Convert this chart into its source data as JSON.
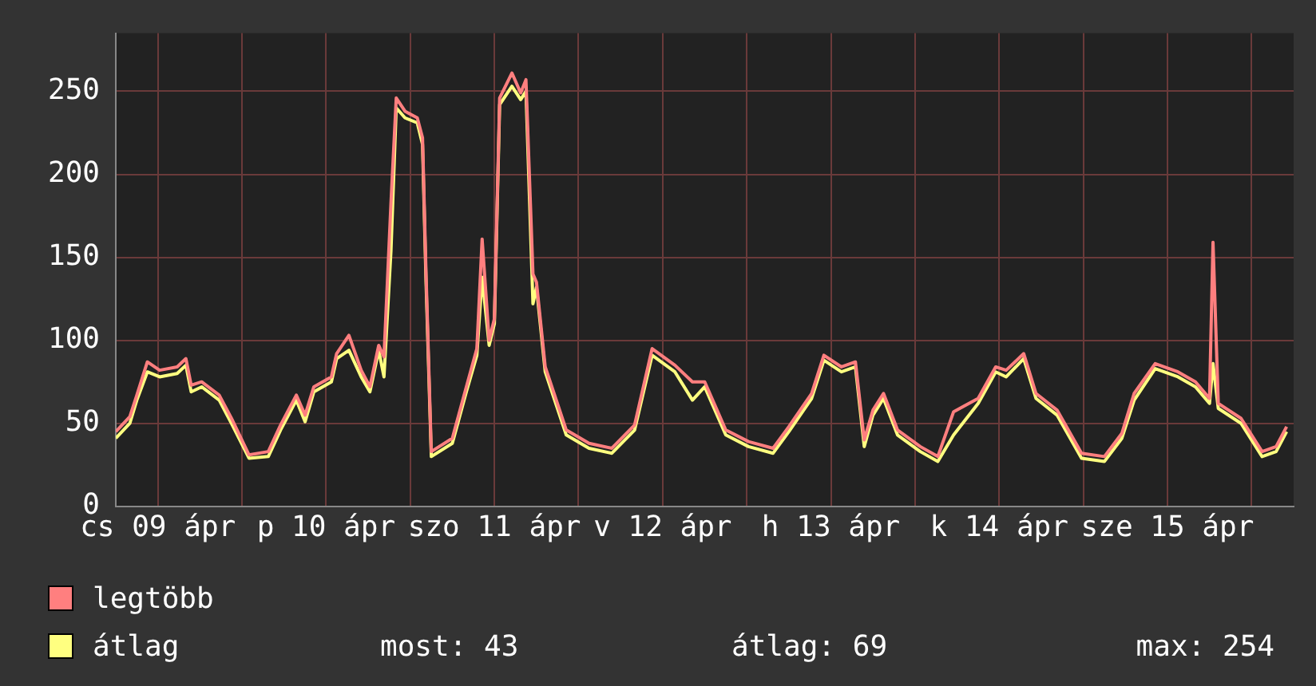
{
  "chart_data": {
    "type": "line",
    "x": [
      "--04-09T06:00",
      "--04-09T08:00",
      "--04-09T09:00",
      "--04-09T10:30",
      "--04-09T12:15",
      "--04-09T14:45",
      "--04-09T16:00",
      "--04-09T16:45",
      "--04-09T18:15",
      "--04-09T20:45",
      "--04-09T22:30",
      "--04-10T01:00",
      "--04-10T03:45",
      "--04-10T05:30",
      "--04-10T07:45",
      "--04-10T09:00",
      "--04-10T10:15",
      "--04-10T12:45",
      "--04-10T13:30",
      "--04-10T15:15",
      "--04-10T17:00",
      "--04-10T18:15",
      "--04-10T19:30",
      "--04-10T20:15",
      "--04-10T21:15",
      "--04-10T22:00",
      "--04-10T23:15",
      "--04-11T01:00",
      "--04-11T01:45",
      "--04-11T02:15",
      "--04-11T03:00",
      "--04-11T06:00",
      "--04-11T08:00",
      "--04-11T09:30",
      "--04-11T10:15",
      "--04-11T11:15",
      "--04-11T12:00",
      "--04-11T12:45",
      "--04-11T14:30",
      "--04-11T15:45",
      "--04-11T16:30",
      "--04-11T17:30",
      "--04-11T18:00",
      "--04-11T19:15",
      "--04-11T22:15",
      "--04-12T01:30",
      "--04-12T04:45",
      "--04-12T08:00",
      "--04-12T10:30",
      "--04-12T13:45",
      "--04-12T16:15",
      "--04-12T18:00",
      "--04-12T21:00",
      "--04-13T00:15",
      "--04-13T03:45",
      "--04-13T06:00",
      "--04-13T09:15",
      "--04-13T11:00",
      "--04-13T13:30",
      "--04-13T15:30",
      "--04-13T16:45",
      "--04-13T18:00",
      "--04-13T19:30",
      "--04-13T21:30",
      "--04-14T00:45",
      "--04-14T03:15",
      "--04-14T05:30",
      "--04-14T09:00",
      "--04-14T11:30",
      "--04-14T13:00",
      "--04-14T15:30",
      "--04-14T17:15",
      "--04-14T20:15",
      "--04-14T23:45",
      "--04-15T03:00",
      "--04-15T05:30",
      "--04-15T07:15",
      "--04-15T10:15",
      "--04-15T13:30",
      "--04-15T16:00",
      "--04-15T18:00",
      "--04-15T18:30",
      "--04-15T19:15",
      "--04-15T22:30",
      "--04-16T01:30",
      "--04-16T03:30",
      "--04-16T05:00"
    ],
    "series": [
      {
        "name": "legtöbb",
        "color": "#ff7f7f",
        "values": [
          45,
          54,
          67,
          87,
          82,
          84,
          89,
          73,
          75,
          67,
          53,
          31,
          33,
          49,
          67,
          55,
          72,
          78,
          92,
          103,
          82,
          72,
          97,
          90,
          183,
          246,
          238,
          234,
          222,
          140,
          33,
          41,
          72,
          95,
          161,
          100,
          113,
          246,
          261,
          249,
          257,
          140,
          135,
          84,
          46,
          38,
          35,
          49,
          95,
          85,
          75,
          75,
          46,
          39,
          35,
          48,
          68,
          91,
          84,
          87,
          40,
          58,
          68,
          46,
          36,
          30,
          57,
          65,
          84,
          82,
          92,
          68,
          58,
          32,
          30,
          44,
          68,
          86,
          81,
          75,
          65,
          159,
          62,
          53,
          33,
          36,
          48
        ]
      },
      {
        "name": "átlag",
        "color": "#ffff80",
        "values": [
          41,
          50,
          64,
          81,
          78,
          80,
          85,
          69,
          72,
          64,
          50,
          29,
          30,
          46,
          64,
          51,
          69,
          75,
          89,
          94,
          78,
          69,
          94,
          78,
          154,
          240,
          234,
          231,
          218,
          135,
          30,
          38,
          69,
          91,
          138,
          97,
          110,
          242,
          253,
          245,
          250,
          122,
          132,
          81,
          43,
          35,
          32,
          46,
          91,
          81,
          64,
          72,
          43,
          36,
          32,
          45,
          65,
          88,
          81,
          84,
          36,
          55,
          65,
          43,
          33,
          27,
          43,
          62,
          81,
          78,
          89,
          65,
          55,
          29,
          27,
          41,
          64,
          83,
          78,
          72,
          62,
          86,
          59,
          50,
          30,
          33,
          45
        ]
      }
    ],
    "xlim": [
      "--04-09T06:00",
      "--04-16T06:00"
    ],
    "xticks": [
      {
        "value": "--04-09T12:00",
        "label": "cs 09 ápr"
      },
      {
        "value": "--04-10T00:00",
        "label": null
      },
      {
        "value": "--04-10T12:00",
        "label": "p 10 ápr"
      },
      {
        "value": "--04-11T00:00",
        "label": null
      },
      {
        "value": "--04-11T12:00",
        "label": "szo 11 ápr"
      },
      {
        "value": "--04-12T00:00",
        "label": null
      },
      {
        "value": "--04-12T12:00",
        "label": "v 12 ápr"
      },
      {
        "value": "--04-13T00:00",
        "label": null
      },
      {
        "value": "--04-13T12:00",
        "label": "h 13 ápr"
      },
      {
        "value": "--04-14T00:00",
        "label": null
      },
      {
        "value": "--04-14T12:00",
        "label": "k 14 ápr"
      },
      {
        "value": "--04-15T00:00",
        "label": null
      },
      {
        "value": "--04-15T12:00",
        "label": "sze 15 ápr"
      },
      {
        "value": "--04-16T00:00",
        "label": null
      }
    ],
    "ylim": [
      0,
      285
    ],
    "yticks": [
      0,
      50,
      100,
      150,
      200,
      250
    ],
    "grid": true,
    "legend": "bottom left",
    "annotations": [
      "most: 43",
      "átlag: 69",
      "max: 254"
    ]
  }
}
